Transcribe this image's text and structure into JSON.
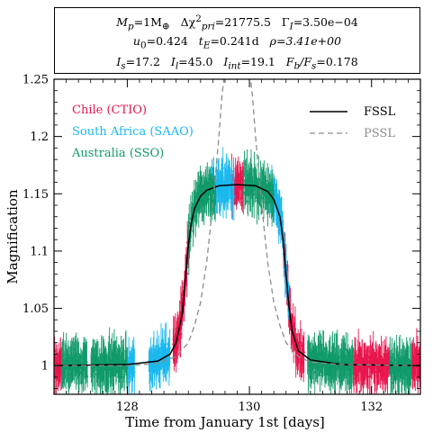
{
  "header": {
    "line1": {
      "mp": "M",
      "mp_sub": "p",
      "mp_val": "=1M",
      "mp_unit_sub": "⊕",
      "dchi": "Δχ",
      "dchi_sup": "2",
      "dchi_sub": "pri",
      "dchi_val": "=21775.5",
      "gamma": "Γ",
      "gamma_sub": "I",
      "gamma_val": "=3.50e−04"
    },
    "line2": {
      "u0": "u",
      "u0_sub": "0",
      "u0_val": "=0.424",
      "te": "t",
      "te_sub": "E",
      "te_val": "=0.241d",
      "rho": "ρ=3.41e+00"
    },
    "line3": {
      "is": "I",
      "is_sub": "s",
      "is_val": "=17.2",
      "il": "I",
      "il_sub": "l",
      "il_val": "=45.0",
      "iint": "I",
      "iint_sub": "int",
      "iint_val": "=19.1",
      "fb": "F",
      "fb_sub": "b",
      "fb_mid": "/F",
      "fs_sub": "s",
      "fb_val": "=0.178"
    }
  },
  "colors": {
    "chile": "#e8164d",
    "saao": "#1ab8ee",
    "sso": "#109a6a",
    "fssl": "#000000",
    "pssl": "#8c8c8c"
  },
  "chart_data": {
    "type": "scatter",
    "xlabel": "Time from January 1st [days]",
    "ylabel": "Magnification",
    "xlim": [
      126.8,
      132.8
    ],
    "ylim": [
      0.975,
      1.25
    ],
    "xticks": [
      128,
      130,
      132
    ],
    "xtick_labels": [
      "128",
      "130",
      "132"
    ],
    "yticks": [
      1.0,
      1.05,
      1.1,
      1.15,
      1.2,
      1.25
    ],
    "ytick_labels": [
      "1",
      "1.05",
      "1.1",
      "1.15",
      "1.2",
      "1.25"
    ],
    "observatories": [
      {
        "name": "Chile (CTIO)",
        "color": "chile",
        "ranges": [
          [
            126.8,
            126.92
          ],
          [
            128.75,
            129.0
          ],
          [
            129.7,
            129.9
          ],
          [
            130.55,
            130.9
          ],
          [
            131.7,
            132.3
          ],
          [
            132.65,
            132.8
          ]
        ]
      },
      {
        "name": "South Africa (SAAO)",
        "color": "saao",
        "ranges": [
          [
            128.0,
            128.12
          ],
          [
            128.35,
            128.7
          ],
          [
            129.35,
            129.75
          ],
          [
            130.35,
            130.65
          ]
        ]
      },
      {
        "name": "Australia (SSO)",
        "color": "sso",
        "ranges": [
          [
            126.92,
            127.35
          ],
          [
            127.4,
            128.0
          ],
          [
            129.0,
            129.45
          ],
          [
            129.9,
            130.4
          ],
          [
            130.95,
            131.7
          ],
          [
            132.3,
            132.65
          ]
        ]
      }
    ],
    "series": [
      {
        "name": "FSSL",
        "style": "solid",
        "color": "fssl",
        "x": [
          126.8,
          128.0,
          128.5,
          128.7,
          128.8,
          128.9,
          128.95,
          129.0,
          129.05,
          129.1,
          129.2,
          129.3,
          129.5,
          129.8,
          130.1,
          130.3,
          130.4,
          130.5,
          130.55,
          130.6,
          130.65,
          130.7,
          130.8,
          131.0,
          131.5,
          132.8
        ],
        "y": [
          1.0,
          1.001,
          1.004,
          1.01,
          1.02,
          1.045,
          1.075,
          1.105,
          1.125,
          1.137,
          1.148,
          1.153,
          1.157,
          1.158,
          1.157,
          1.152,
          1.145,
          1.13,
          1.11,
          1.08,
          1.05,
          1.03,
          1.013,
          1.005,
          1.001,
          1.0
        ]
      },
      {
        "name": "PSSL",
        "style": "dashed",
        "color": "pssl",
        "x": [
          126.8,
          128.0,
          128.5,
          128.8,
          129.0,
          129.1,
          129.2,
          129.3,
          129.4,
          129.5,
          129.55,
          129.6,
          130.0,
          130.05,
          130.1,
          130.2,
          130.3,
          130.4,
          130.5,
          130.6,
          130.8,
          131.0,
          131.5,
          132.8
        ],
        "y": [
          1.0,
          1.0,
          1.002,
          1.008,
          1.02,
          1.035,
          1.055,
          1.09,
          1.14,
          1.2,
          1.235,
          1.26,
          1.26,
          1.235,
          1.2,
          1.14,
          1.09,
          1.055,
          1.035,
          1.02,
          1.008,
          1.003,
          1.001,
          1.0
        ]
      }
    ]
  }
}
